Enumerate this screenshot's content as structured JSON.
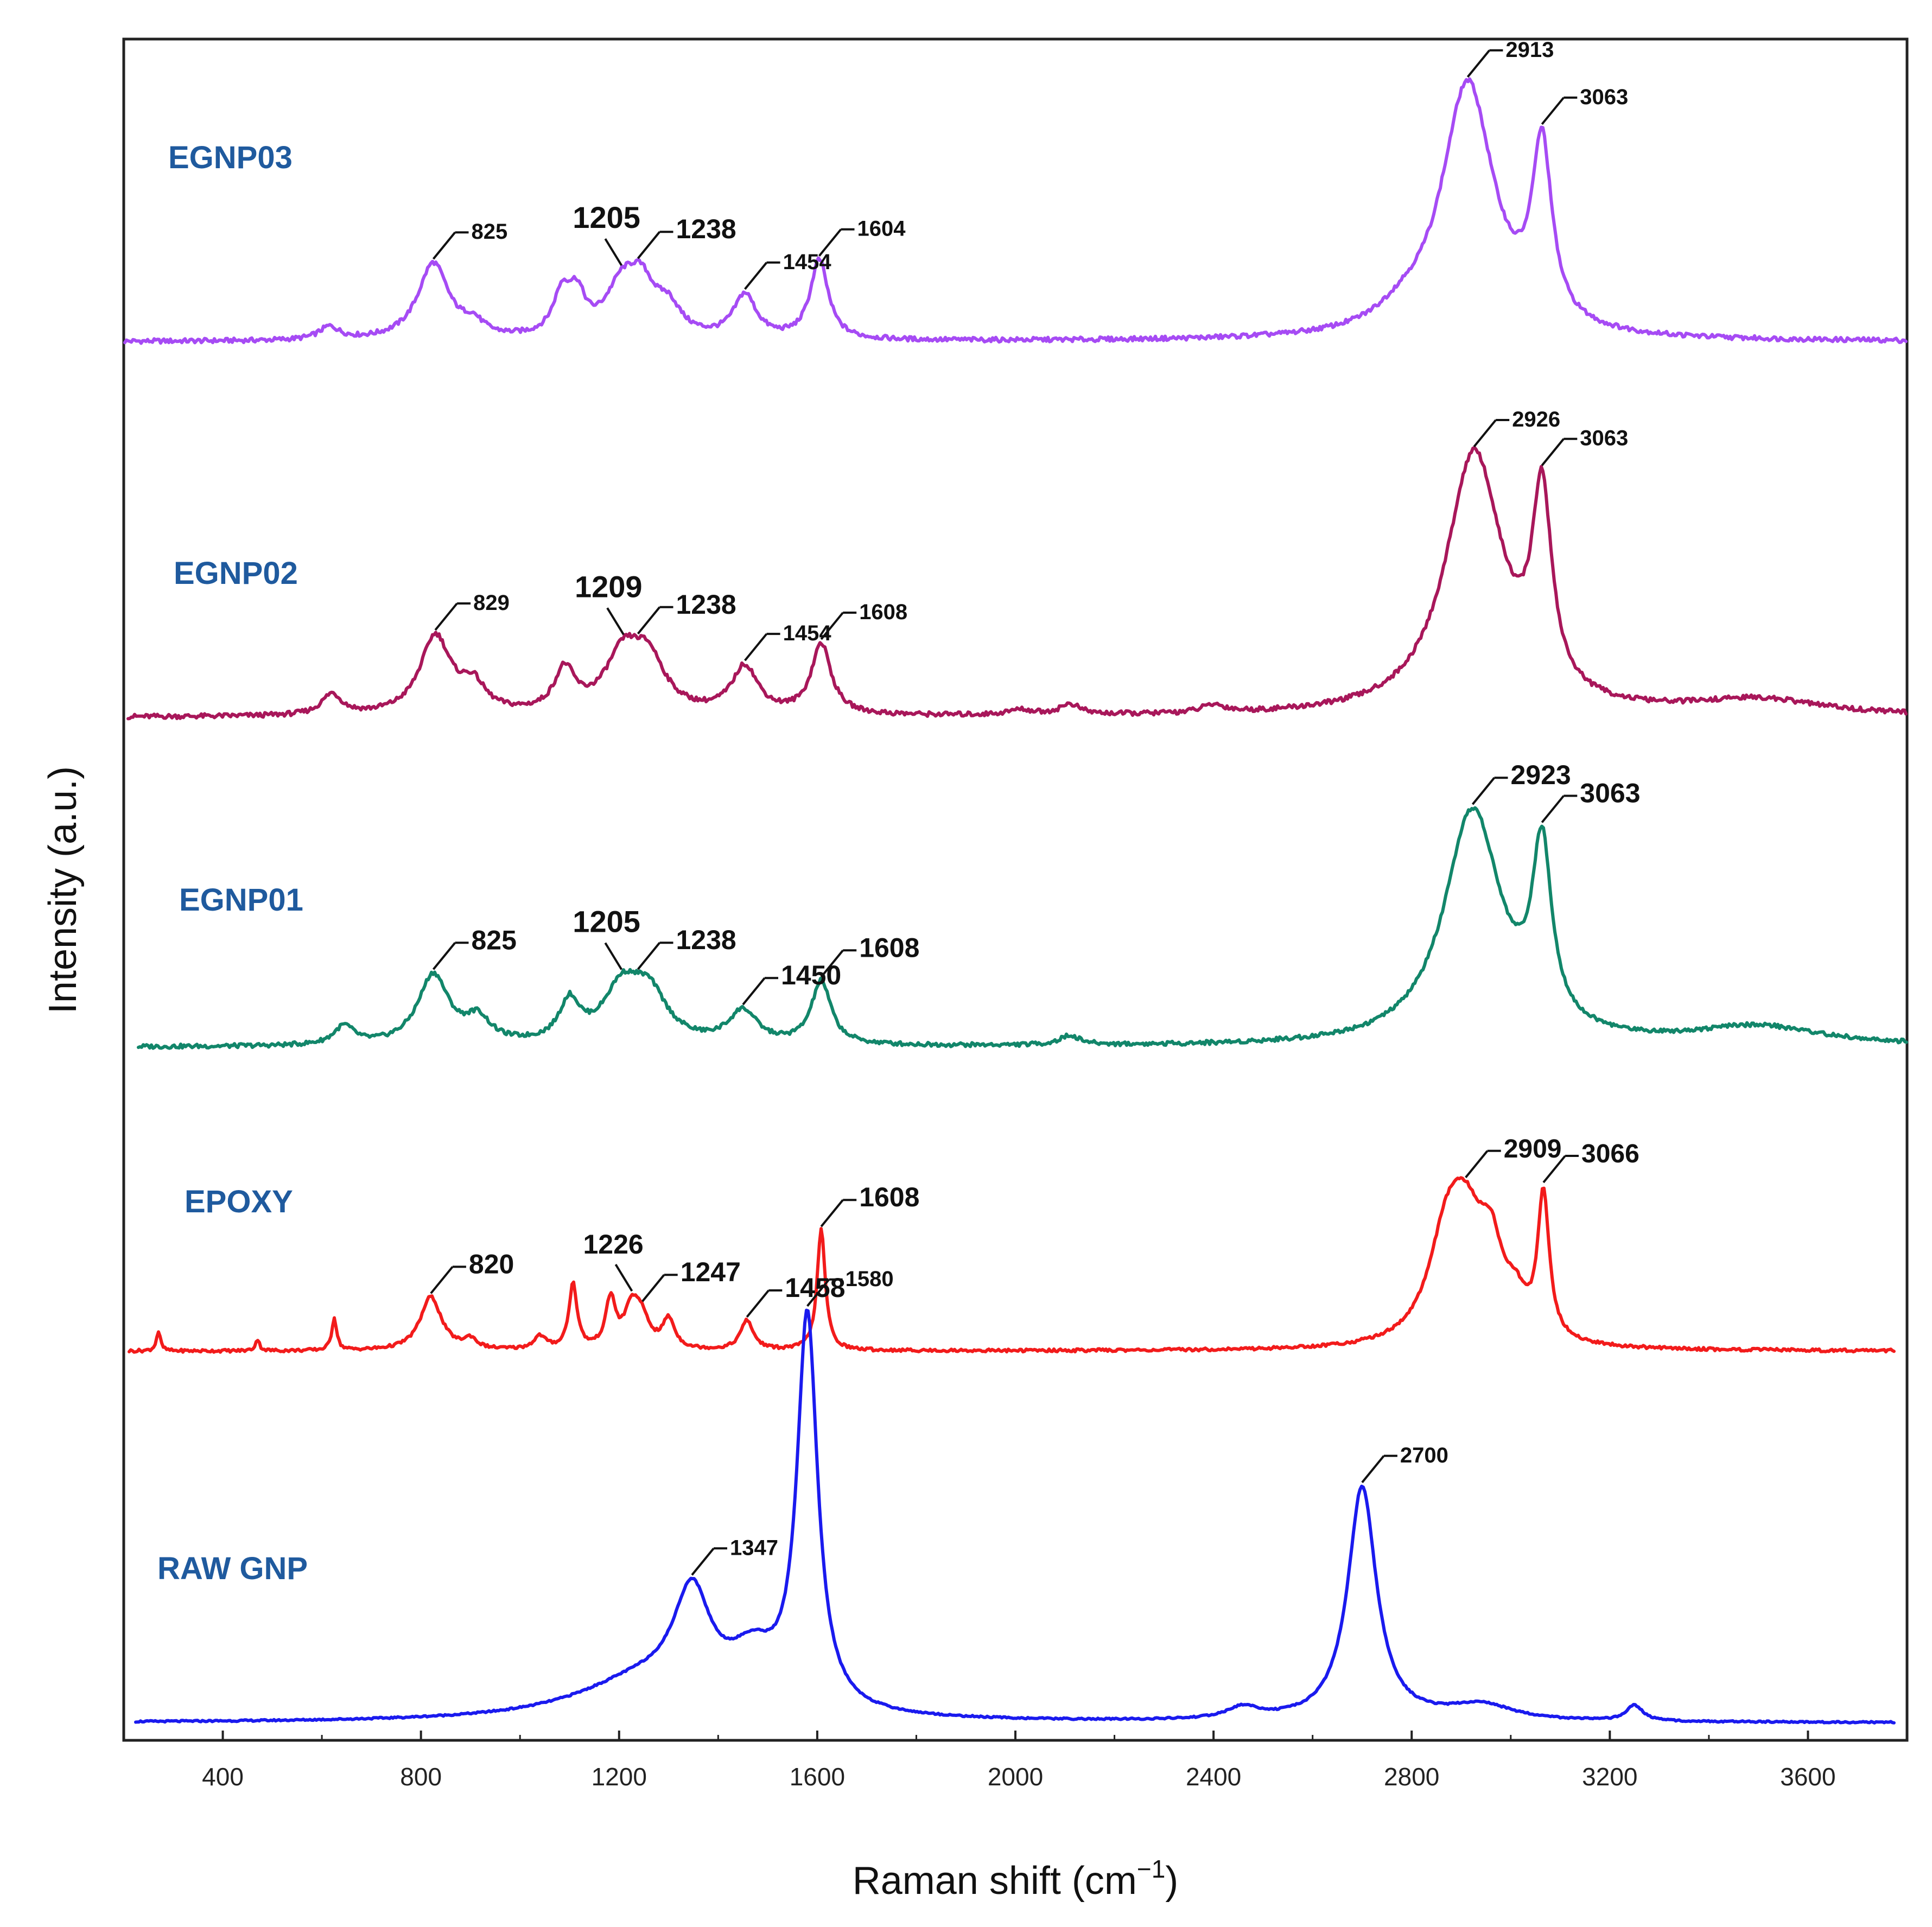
{
  "chart_data": {
    "type": "line",
    "xlabel": "Raman shift (cm",
    "xlabel_sup": "−1",
    "xlabel_close": ")",
    "ylabel": "Intensity (a.u.)",
    "xlim": [
      200,
      3800
    ],
    "xticks": [
      "400",
      "800",
      "1200",
      "1600",
      "2000",
      "2400",
      "2800",
      "3200",
      "3600"
    ],
    "series": [
      {
        "name": "EGNP03",
        "color": "#a64bf4",
        "label_color": "#1f5a9e",
        "peaks": [
          {
            "x": 615,
            "h": 0.05,
            "w": 25
          },
          {
            "x": 825,
            "h": 0.3,
            "w": 38
          },
          {
            "x": 905,
            "h": 0.05,
            "w": 25
          },
          {
            "x": 1085,
            "h": 0.16,
            "w": 22
          },
          {
            "x": 1115,
            "h": 0.14,
            "w": 20
          },
          {
            "x": 1205,
            "h": 0.18,
            "w": 40
          },
          {
            "x": 1245,
            "h": 0.18,
            "w": 35
          },
          {
            "x": 1300,
            "h": 0.1,
            "w": 30
          },
          {
            "x": 1454,
            "h": 0.17,
            "w": 28
          },
          {
            "x": 1604,
            "h": 0.31,
            "w": 22
          },
          {
            "x": 2780,
            "h": 0.05,
            "w": 60
          },
          {
            "x": 2913,
            "h": 1.0,
            "w": 65
          },
          {
            "x": 3063,
            "h": 0.68,
            "w": 24
          }
        ],
        "annotations": [
          {
            "text": "825",
            "x": 825,
            "size": "small"
          },
          {
            "text": "1205",
            "x": 1205,
            "size": "large"
          },
          {
            "text": "1238",
            "x": 1238,
            "size": "medium"
          },
          {
            "text": "1454",
            "x": 1454,
            "size": "small"
          },
          {
            "text": "1604",
            "x": 1604,
            "size": "small"
          },
          {
            "text": "2913",
            "x": 2913,
            "size": "small"
          },
          {
            "text": "3063",
            "x": 3063,
            "size": "small"
          }
        ]
      },
      {
        "name": "EGNP02",
        "color": "#a8175a",
        "label_color": "#1f5a9e",
        "peaks": [
          {
            "x": 620,
            "h": 0.08,
            "w": 25
          },
          {
            "x": 829,
            "h": 0.3,
            "w": 38
          },
          {
            "x": 905,
            "h": 0.1,
            "w": 30
          },
          {
            "x": 1090,
            "h": 0.16,
            "w": 25
          },
          {
            "x": 1209,
            "h": 0.22,
            "w": 45
          },
          {
            "x": 1260,
            "h": 0.18,
            "w": 40
          },
          {
            "x": 1454,
            "h": 0.18,
            "w": 32
          },
          {
            "x": 1608,
            "h": 0.27,
            "w": 24
          },
          {
            "x": 2010,
            "h": 0.02,
            "w": 30
          },
          {
            "x": 2110,
            "h": 0.04,
            "w": 25
          },
          {
            "x": 2400,
            "h": 0.03,
            "w": 30
          },
          {
            "x": 2926,
            "h": 1.0,
            "w": 70
          },
          {
            "x": 3063,
            "h": 0.74,
            "w": 24
          },
          {
            "x": 3500,
            "h": 0.06,
            "w": 160
          }
        ],
        "annotations": [
          {
            "text": "829",
            "x": 829,
            "size": "small"
          },
          {
            "text": "1209",
            "x": 1209,
            "size": "large"
          },
          {
            "text": "1238",
            "x": 1238,
            "size": "medium"
          },
          {
            "text": "1454",
            "x": 1454,
            "size": "small"
          },
          {
            "text": "1608",
            "x": 1608,
            "size": "small"
          },
          {
            "text": "2926",
            "x": 2926,
            "size": "small"
          },
          {
            "text": "3063",
            "x": 3063,
            "size": "small"
          }
        ]
      },
      {
        "name": "EGNP01",
        "color": "#12866a",
        "label_color": "#1f5a9e",
        "peaks": [
          {
            "x": 645,
            "h": 0.08,
            "w": 25
          },
          {
            "x": 825,
            "h": 0.3,
            "w": 38
          },
          {
            "x": 915,
            "h": 0.1,
            "w": 30
          },
          {
            "x": 1100,
            "h": 0.17,
            "w": 25
          },
          {
            "x": 1205,
            "h": 0.22,
            "w": 45
          },
          {
            "x": 1260,
            "h": 0.2,
            "w": 45
          },
          {
            "x": 1450,
            "h": 0.14,
            "w": 35
          },
          {
            "x": 1608,
            "h": 0.27,
            "w": 24
          },
          {
            "x": 2110,
            "h": 0.04,
            "w": 25
          },
          {
            "x": 2923,
            "h": 1.0,
            "w": 70
          },
          {
            "x": 3063,
            "h": 0.74,
            "w": 24
          },
          {
            "x": 3500,
            "h": 0.08,
            "w": 160
          }
        ],
        "annotations": [
          {
            "text": "825",
            "x": 825,
            "size": "medium"
          },
          {
            "text": "1205",
            "x": 1205,
            "size": "large"
          },
          {
            "text": "1238",
            "x": 1238,
            "size": "medium"
          },
          {
            "text": "1450",
            "x": 1450,
            "size": "medium"
          },
          {
            "text": "1608",
            "x": 1608,
            "size": "medium"
          },
          {
            "text": "2923",
            "x": 2923,
            "size": "medium"
          },
          {
            "text": "3063",
            "x": 3063,
            "size": "medium"
          }
        ]
      },
      {
        "name": "EPOXY",
        "color": "#f21b1b",
        "label_color": "#1f5a9e",
        "peaks": [
          {
            "x": 270,
            "h": 0.12,
            "w": 5
          },
          {
            "x": 470,
            "h": 0.07,
            "w": 5
          },
          {
            "x": 625,
            "h": 0.2,
            "w": 6
          },
          {
            "x": 820,
            "h": 0.33,
            "w": 26
          },
          {
            "x": 900,
            "h": 0.06,
            "w": 15
          },
          {
            "x": 1040,
            "h": 0.08,
            "w": 15
          },
          {
            "x": 1107,
            "h": 0.4,
            "w": 10
          },
          {
            "x": 1183,
            "h": 0.3,
            "w": 12
          },
          {
            "x": 1226,
            "h": 0.25,
            "w": 18
          },
          {
            "x": 1247,
            "h": 0.15,
            "w": 18
          },
          {
            "x": 1300,
            "h": 0.18,
            "w": 15
          },
          {
            "x": 1458,
            "h": 0.18,
            "w": 16
          },
          {
            "x": 1608,
            "h": 0.74,
            "w": 10
          },
          {
            "x": 2870,
            "h": 0.55,
            "w": 45
          },
          {
            "x": 2909,
            "h": 0.6,
            "w": 45
          },
          {
            "x": 2960,
            "h": 0.45,
            "w": 30
          },
          {
            "x": 3010,
            "h": 0.18,
            "w": 25
          },
          {
            "x": 3066,
            "h": 0.88,
            "w": 14
          }
        ],
        "annotations": [
          {
            "text": "820",
            "x": 820,
            "size": "medium"
          },
          {
            "text": "1226",
            "x": 1226,
            "size": "medium"
          },
          {
            "text": "1247",
            "x": 1247,
            "size": "medium"
          },
          {
            "text": "1458",
            "x": 1458,
            "size": "medium"
          },
          {
            "text": "1608",
            "x": 1608,
            "size": "medium"
          },
          {
            "text": "2909",
            "x": 2909,
            "size": "plain"
          },
          {
            "text": "3066",
            "x": 3066,
            "size": "plain"
          }
        ]
      },
      {
        "name": "RAW GNP",
        "color": "#1a1aee",
        "label_color": "#1f5a9e",
        "peaks": [
          {
            "x": 1347,
            "h": 0.26,
            "w": 45
          },
          {
            "x": 1250,
            "h": 0.1,
            "w": 170
          },
          {
            "x": 1470,
            "h": 0.12,
            "w": 60
          },
          {
            "x": 1580,
            "h": 1.0,
            "w": 25
          },
          {
            "x": 2460,
            "h": 0.03,
            "w": 40
          },
          {
            "x": 2700,
            "h": 0.6,
            "w": 35
          },
          {
            "x": 2940,
            "h": 0.04,
            "w": 80
          },
          {
            "x": 3250,
            "h": 0.04,
            "w": 20
          }
        ],
        "annotations": [
          {
            "text": "1347",
            "x": 1347,
            "size": "small"
          },
          {
            "text": "1580",
            "x": 1580,
            "size": "small"
          },
          {
            "text": "2700",
            "x": 2700,
            "size": "small"
          }
        ]
      }
    ]
  }
}
